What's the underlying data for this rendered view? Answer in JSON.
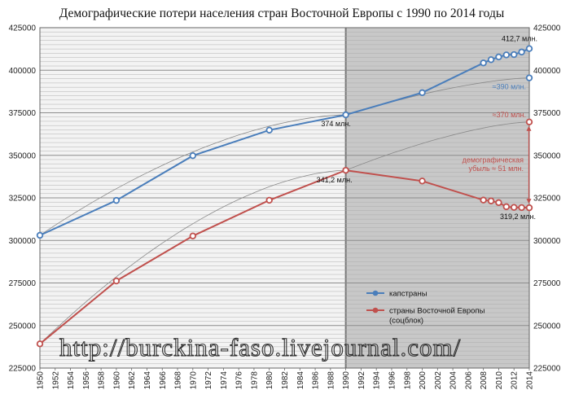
{
  "chart_data": {
    "type": "line",
    "title": "Демографические потери населения стран Восточной Европы с 1990 по 2014 годы",
    "xlim": [
      1950,
      2014
    ],
    "ylim": [
      225000,
      425000
    ],
    "yticks": [
      225000,
      250000,
      275000,
      300000,
      325000,
      350000,
      375000,
      400000,
      425000
    ],
    "ytick_labels": [
      "225000",
      "250000",
      "275000",
      "300000",
      "325000",
      "350000",
      "375000",
      "400000",
      "425000"
    ],
    "xticks": [
      1950,
      1952,
      1954,
      1956,
      1958,
      1960,
      1962,
      1964,
      1966,
      1968,
      1970,
      1972,
      1974,
      1976,
      1978,
      1980,
      1982,
      1984,
      1986,
      1988,
      1990,
      1992,
      1994,
      1996,
      1998,
      2000,
      2002,
      2004,
      2006,
      2008,
      2010,
      2012,
      2014
    ],
    "shaded_from": 1990,
    "series": [
      {
        "name": "капстраны",
        "color": "#4a7ebb",
        "x": [
          1950,
          1960,
          1970,
          1980,
          1990,
          2000,
          2008,
          2009,
          2010,
          2011,
          2012,
          2013,
          2014
        ],
        "y": [
          303000,
          323500,
          349800,
          364800,
          373800,
          386800,
          404300,
          406200,
          407800,
          409000,
          409200,
          410700,
          412700
        ]
      },
      {
        "name": "страны Восточной Европы\n(соцблок)",
        "color": "#c0504d",
        "x": [
          1950,
          1960,
          1970,
          1980,
          1990,
          2000,
          2008,
          2009,
          2010,
          2011,
          2012,
          2013,
          2014
        ],
        "y": [
          239200,
          276200,
          302600,
          323600,
          341200,
          334900,
          323700,
          323200,
          322200,
          319800,
          319400,
          319300,
          319200
        ]
      }
    ],
    "projected_points": [
      {
        "x": 2014,
        "y": 395500,
        "color": "#4a7ebb"
      },
      {
        "x": 2014,
        "y": 369600,
        "color": "#c0504d"
      }
    ],
    "annotations": {
      "blue_end": "412,7 млн.",
      "blue_proj": "≈390 млн.",
      "blue_1990": "374 млн.",
      "red_proj": "≈370 млн.",
      "red_1990": "341,2 млн.",
      "red_end": "319,2 млн.",
      "loss_line1": "демографическая",
      "loss_line2": "убыль ≈ 51 млн."
    },
    "watermark": "http://burckina-faso.livejournal.com/"
  }
}
